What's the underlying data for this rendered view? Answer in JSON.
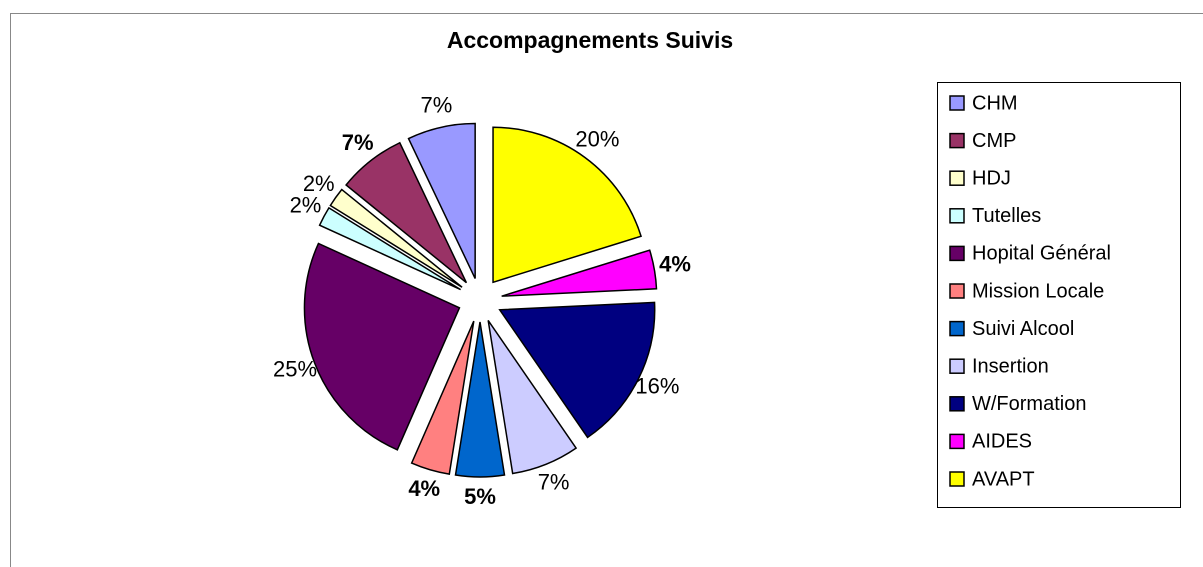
{
  "chart_data": {
    "type": "pie",
    "title": "Accompagnements Suivis",
    "categories": [
      "CHM",
      "CMP",
      "HDJ",
      "Tutelles",
      "Hopital Général",
      "Mission Locale",
      "Suivi Alcool",
      "Insertion",
      "W/Formation",
      "AIDES",
      "AVAPT"
    ],
    "values": [
      7,
      7,
      2,
      2,
      25,
      4,
      5,
      7,
      16,
      4,
      20
    ],
    "value_labels": [
      "7%",
      "7%",
      "2%",
      "2%",
      "25%",
      "4%",
      "5%",
      "7%",
      "16%",
      "4%",
      "20%"
    ],
    "label_bold": [
      false,
      true,
      false,
      false,
      false,
      true,
      true,
      false,
      false,
      true,
      false
    ],
    "colors": [
      "#9999ff",
      "#993366",
      "#ffffcc",
      "#ccffff",
      "#660066",
      "#ff8080",
      "#0066cc",
      "#ccccff",
      "#000080",
      "#ff00ff",
      "#ffff00"
    ],
    "legend": "right"
  }
}
